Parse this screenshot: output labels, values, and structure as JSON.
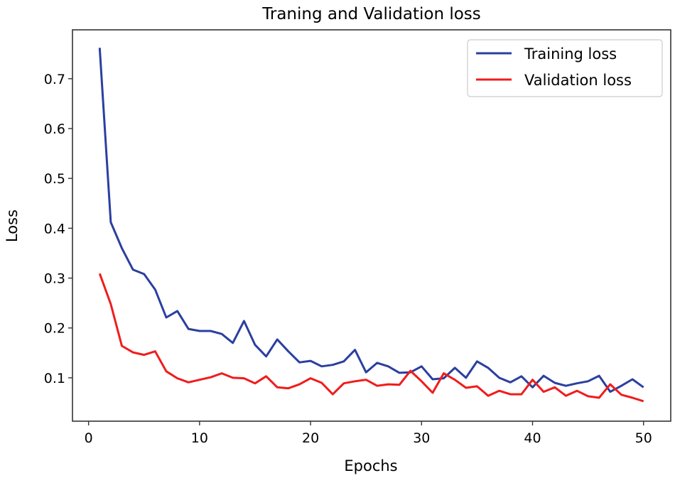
{
  "chart_data": {
    "type": "line",
    "title": "Traning and Validation loss",
    "xlabel": "Epochs",
    "ylabel": "Loss",
    "xlim": [
      -1.45,
      52.45
    ],
    "ylim": [
      0.013,
      0.798
    ],
    "xticks": [
      0,
      10,
      20,
      30,
      40,
      50
    ],
    "yticks": [
      0.1,
      0.2,
      0.3,
      0.4,
      0.5,
      0.6,
      0.7
    ],
    "xtick_labels": [
      "0",
      "10",
      "20",
      "30",
      "40",
      "50"
    ],
    "ytick_labels": [
      "0.1",
      "0.2",
      "0.3",
      "0.4",
      "0.5",
      "0.6",
      "0.7"
    ],
    "grid": false,
    "legend_position": "top-right",
    "x": [
      1,
      2,
      3,
      4,
      5,
      6,
      7,
      8,
      9,
      10,
      11,
      12,
      13,
      14,
      15,
      16,
      17,
      18,
      19,
      20,
      21,
      22,
      23,
      24,
      25,
      26,
      27,
      28,
      29,
      30,
      31,
      32,
      33,
      34,
      35,
      36,
      37,
      38,
      39,
      40,
      41,
      42,
      43,
      44,
      45,
      46,
      47,
      48,
      49,
      50
    ],
    "series": [
      {
        "name": "Training loss",
        "color": "#2b3fa0",
        "values": [
          0.762,
          0.412,
          0.36,
          0.317,
          0.308,
          0.277,
          0.221,
          0.234,
          0.198,
          0.194,
          0.194,
          0.188,
          0.17,
          0.214,
          0.166,
          0.143,
          0.177,
          0.153,
          0.131,
          0.134,
          0.123,
          0.126,
          0.133,
          0.156,
          0.111,
          0.13,
          0.123,
          0.11,
          0.111,
          0.123,
          0.097,
          0.099,
          0.12,
          0.1,
          0.133,
          0.12,
          0.1,
          0.091,
          0.103,
          0.081,
          0.104,
          0.09,
          0.084,
          0.089,
          0.093,
          0.104,
          0.072,
          0.084,
          0.097,
          0.081
        ]
      },
      {
        "name": "Validation loss",
        "color": "#f01c1c",
        "values": [
          0.309,
          0.248,
          0.164,
          0.151,
          0.146,
          0.153,
          0.113,
          0.099,
          0.091,
          0.096,
          0.101,
          0.109,
          0.1,
          0.099,
          0.089,
          0.103,
          0.081,
          0.079,
          0.087,
          0.099,
          0.09,
          0.067,
          0.089,
          0.093,
          0.096,
          0.084,
          0.087,
          0.086,
          0.114,
          0.093,
          0.07,
          0.109,
          0.096,
          0.08,
          0.083,
          0.064,
          0.074,
          0.067,
          0.067,
          0.096,
          0.072,
          0.081,
          0.064,
          0.074,
          0.063,
          0.06,
          0.087,
          0.066,
          0.06,
          0.053
        ]
      }
    ]
  }
}
